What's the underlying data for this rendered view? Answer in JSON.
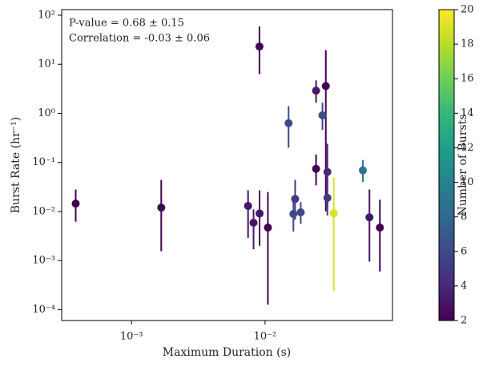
{
  "chart_data": {
    "type": "scatter",
    "xlabel": "Maximum Duration (s)",
    "ylabel": "Burst Rate (hr⁻¹)",
    "annotations": [
      "P-value = 0.68 ± 0.15",
      "Correlation = -0.03 ± 0.06"
    ],
    "xscale": "log",
    "yscale": "log",
    "xlim": [
      0.0003,
      0.09
    ],
    "ylim": [
      6e-05,
      130
    ],
    "xticks": [
      {
        "value": 0.001,
        "label": "10⁻³"
      },
      {
        "value": 0.01,
        "label": "10⁻²"
      }
    ],
    "yticks": [
      {
        "value": 0.0001,
        "label": "10⁻⁴"
      },
      {
        "value": 0.001,
        "label": "10⁻³"
      },
      {
        "value": 0.01,
        "label": "10⁻²"
      },
      {
        "value": 0.1,
        "label": "10⁻¹"
      },
      {
        "value": 1,
        "label": "10⁰"
      },
      {
        "value": 10,
        "label": "10¹"
      },
      {
        "value": 100,
        "label": "10²"
      }
    ],
    "x": [
      0.000382,
      0.00167,
      0.00746,
      0.0082,
      0.00908,
      0.0091,
      0.0105,
      0.015,
      0.0163,
      0.0168,
      0.0185,
      0.0241,
      0.0241,
      0.0269,
      0.0285,
      0.0293,
      0.0293,
      0.0327,
      0.054,
      0.0605,
      0.0724
    ],
    "values": [
      0.0145,
      0.012,
      0.013,
      0.0059,
      23,
      0.0091,
      0.0047,
      0.63,
      0.0089,
      0.018,
      0.0096,
      2.9,
      0.074,
      0.91,
      3.6,
      0.064,
      0.019,
      0.0092,
      0.069,
      0.0076,
      0.0047
    ],
    "upper": [
      0.028,
      0.044,
      0.027,
      0.011,
      59,
      0.027,
      0.025,
      1.4,
      0.021,
      0.044,
      0.0155,
      4.7,
      0.145,
      1.65,
      19.5,
      0.24,
      0.044,
      0.049,
      0.112,
      0.028,
      0.0174
    ],
    "lower": [
      0.0062,
      0.00155,
      0.0029,
      0.0017,
      6.3,
      0.002,
      0.000126,
      0.2,
      0.0039,
      0.0068,
      0.0056,
      1.65,
      0.034,
      0.46,
      0.01,
      0.012,
      0.0083,
      0.00024,
      0.04,
      0.00095,
      0.0006
    ],
    "counts": [
      2,
      2,
      3,
      3,
      2,
      3,
      2,
      6,
      6,
      5,
      6,
      3,
      2,
      6,
      2,
      4,
      5,
      19,
      9,
      3,
      2
    ],
    "colormap": "viridis",
    "colorbar": {
      "label": "Number of Bursts",
      "lim": [
        2,
        20
      ],
      "ticks": [
        2,
        4,
        6,
        8,
        10,
        12,
        14,
        16,
        18,
        20
      ]
    }
  }
}
